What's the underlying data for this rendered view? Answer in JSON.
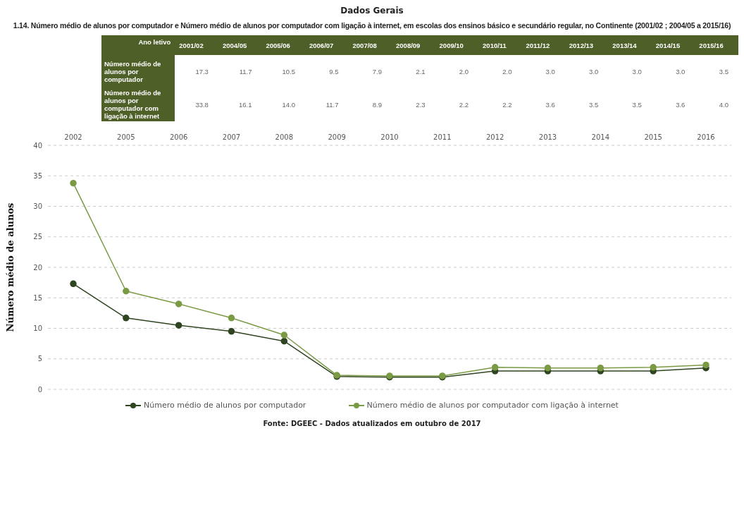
{
  "chart_data": [
    {
      "type": "heatmap",
      "title": "Dados Gerais",
      "subtitle": "1.14. Número médio de alunos por computador e Número médio de alunos por computador com ligação à internet, em escolas dos ensinos básico e secundário regular, no Continente (2001/02 ; 2004/05 a 2015/16)",
      "xlabel": "Ano letivo",
      "categories": [
        "2001/02",
        "2004/05",
        "2005/06",
        "2006/07",
        "2007/08",
        "2008/09",
        "2009/10",
        "2010/11",
        "2011/12",
        "2012/13",
        "2013/14",
        "2014/15",
        "2015/16"
      ],
      "y_categories": [
        "Número médio de alunos por computador",
        "Número médio de alunos por computador com ligação à internet"
      ],
      "cells": [
        [
          17.3,
          11.7,
          10.5,
          9.5,
          7.9,
          2.1,
          2.0,
          2.0,
          3.0,
          3.0,
          3.0,
          3.0,
          3.5
        ],
        [
          33.8,
          16.1,
          14.0,
          11.7,
          8.9,
          2.3,
          2.2,
          2.2,
          3.6,
          3.5,
          3.5,
          3.6,
          4.0
        ]
      ],
      "cell_labels": [
        [
          "17.3",
          "11.7",
          "10.5",
          "9.5",
          "7.9",
          "2.1",
          "2.0",
          "2.0",
          "3.0",
          "3.0",
          "3.0",
          "3.0",
          "3.5"
        ],
        [
          "33.8",
          "16.1",
          "14.0",
          "11.7",
          "8.9",
          "2.3",
          "2.2",
          "2.2",
          "3.6",
          "3.5",
          "3.5",
          "3.6",
          "4.0"
        ]
      ]
    },
    {
      "type": "line",
      "ylabel": "Número médio de alunos",
      "categories": [
        "2002",
        "2005",
        "2006",
        "2007",
        "2008",
        "2009",
        "2010",
        "2011",
        "2012",
        "2013",
        "2014",
        "2015",
        "2016"
      ],
      "series": [
        {
          "name": "Número médio de alunos por computador",
          "color": "#2f4420",
          "values": [
            17.3,
            11.7,
            10.5,
            9.5,
            7.9,
            2.1,
            2.0,
            2.0,
            3.0,
            3.0,
            3.0,
            3.0,
            3.5
          ]
        },
        {
          "name": "Número médio de alunos por computador com ligação à internet",
          "color": "#7a9a44",
          "values": [
            33.8,
            16.1,
            14.0,
            11.7,
            8.9,
            2.3,
            2.2,
            2.2,
            3.6,
            3.5,
            3.5,
            3.6,
            4.0
          ]
        }
      ],
      "ylim": [
        0,
        40
      ],
      "yticks": [
        0,
        5,
        10,
        15,
        20,
        25,
        30,
        35,
        40
      ],
      "grid": "y",
      "legend": "bottom",
      "marker": "circle",
      "line_style": "solid",
      "annotations": [
        "Fonte: DGEEC - Dados atualizados em outubro de 2017"
      ]
    }
  ]
}
